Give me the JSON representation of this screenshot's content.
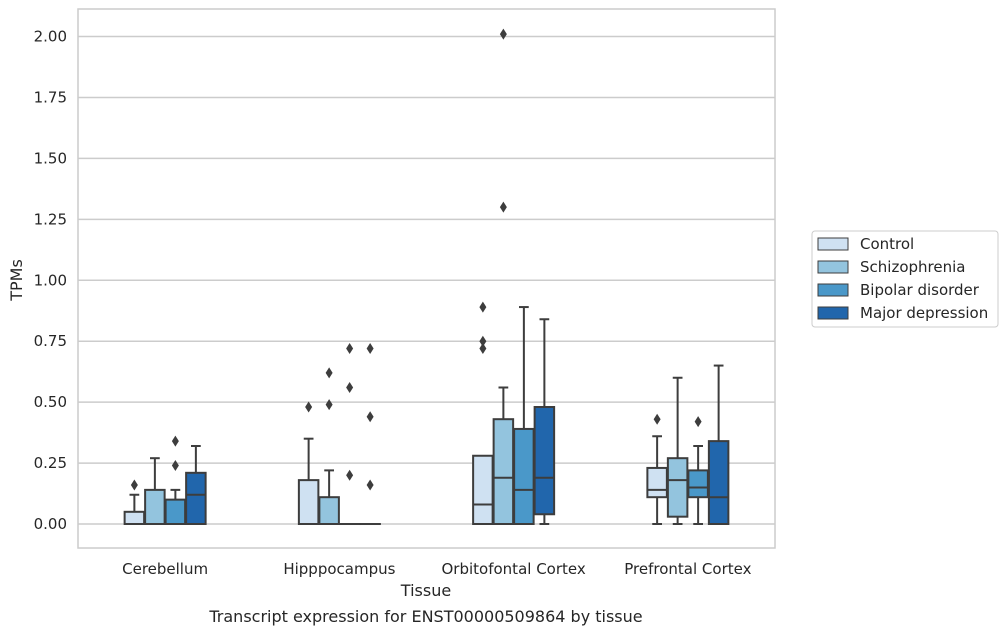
{
  "chart_data": {
    "type": "box",
    "title": "Transcript expression for ENST00000509864 by tissue",
    "xlabel": "Tissue",
    "ylabel": "TPMs",
    "ylim": [
      -0.1,
      2.12
    ],
    "yticks": [
      "0.00",
      "0.25",
      "0.50",
      "0.75",
      "1.00",
      "1.25",
      "1.50",
      "1.75",
      "2.00"
    ],
    "ytick_values": [
      0,
      0.25,
      0.5,
      0.75,
      1.0,
      1.25,
      1.5,
      1.75,
      2.0
    ],
    "categories": [
      "Cerebellum",
      "Hipppocampus",
      "Orbitofontal Cortex",
      "Prefrontal Cortex"
    ],
    "grid": true,
    "legend_position": "right",
    "series": [
      {
        "name": "Control",
        "color": "#cfe1f2",
        "boxes": [
          {
            "whislo": 0,
            "q1": 0,
            "med": 0,
            "q3": 0.05,
            "whishi": 0.12,
            "fliers": [
              0.16
            ]
          },
          {
            "whislo": 0,
            "q1": 0,
            "med": 0,
            "q3": 0.18,
            "whishi": 0.35,
            "fliers": [
              0.48
            ]
          },
          {
            "whislo": 0,
            "q1": 0,
            "med": 0.08,
            "q3": 0.28,
            "whishi": 0.28,
            "fliers": [
              0.72,
              0.75,
              0.89
            ]
          },
          {
            "whislo": 0,
            "q1": 0.11,
            "med": 0.14,
            "q3": 0.23,
            "whishi": 0.36,
            "fliers": [
              0.43
            ]
          }
        ]
      },
      {
        "name": "Schizophrenia",
        "color": "#93c4de",
        "boxes": [
          {
            "whislo": 0,
            "q1": 0,
            "med": 0,
            "q3": 0.14,
            "whishi": 0.27,
            "fliers": []
          },
          {
            "whislo": 0,
            "q1": 0,
            "med": 0,
            "q3": 0.11,
            "whishi": 0.22,
            "fliers": [
              0.49,
              0.62
            ]
          },
          {
            "whislo": 0,
            "q1": 0,
            "med": 0.19,
            "q3": 0.43,
            "whishi": 0.56,
            "fliers": [
              1.3,
              2.01
            ]
          },
          {
            "whislo": 0,
            "q1": 0.03,
            "med": 0.18,
            "q3": 0.27,
            "whishi": 0.6,
            "fliers": []
          }
        ]
      },
      {
        "name": "Bipolar disorder",
        "color": "#4a98c9",
        "boxes": [
          {
            "whislo": 0,
            "q1": 0,
            "med": 0,
            "q3": 0.1,
            "whishi": 0.14,
            "fliers": [
              0.24,
              0.34
            ]
          },
          {
            "whislo": 0,
            "q1": 0,
            "med": 0,
            "q3": 0,
            "whishi": 0,
            "fliers": [
              0.2,
              0.56,
              0.72
            ]
          },
          {
            "whislo": 0,
            "q1": 0,
            "med": 0.14,
            "q3": 0.39,
            "whishi": 0.89,
            "fliers": []
          },
          {
            "whislo": 0,
            "q1": 0.11,
            "med": 0.15,
            "q3": 0.22,
            "whishi": 0.32,
            "fliers": [
              0.42
            ]
          }
        ]
      },
      {
        "name": "Major depression",
        "color": "#2166ac",
        "boxes": [
          {
            "whislo": 0,
            "q1": 0,
            "med": 0.12,
            "q3": 0.21,
            "whishi": 0.32,
            "fliers": []
          },
          {
            "whislo": 0,
            "q1": 0,
            "med": 0,
            "q3": 0,
            "whishi": 0,
            "fliers": [
              0.16,
              0.44,
              0.72
            ]
          },
          {
            "whislo": 0,
            "q1": 0.04,
            "med": 0.19,
            "q3": 0.48,
            "whishi": 0.84,
            "fliers": []
          },
          {
            "whislo": 0,
            "q1": 0,
            "med": 0.11,
            "q3": 0.34,
            "whishi": 0.65,
            "fliers": []
          }
        ]
      }
    ]
  },
  "colors": {
    "grid": "#cccccc",
    "frame": "#cccccc",
    "box_edge": "#3d3d3d",
    "text": "#262626"
  }
}
